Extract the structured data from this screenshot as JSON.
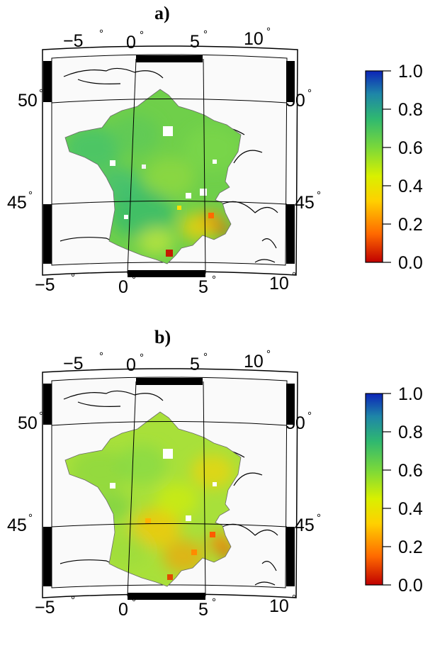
{
  "panels": [
    {
      "label": "a)",
      "lon_labels_top": [
        "−5",
        "0",
        "5",
        "10"
      ],
      "lon_labels_bottom": [
        "−5",
        "0",
        "5",
        "10"
      ],
      "lat_labels_left": [
        "50",
        "45"
      ],
      "lat_labels_right": [
        "50",
        "45"
      ],
      "degree_symbol": "°",
      "colorbar": {
        "ticks": [
          "1.0",
          "0.8",
          "0.6",
          "0.4",
          "0.2",
          "0.0"
        ],
        "min": 0.0,
        "max": 1.0
      },
      "field_mean": 0.7
    },
    {
      "label": "b)",
      "lon_labels_top": [
        "−5",
        "0",
        "5",
        "10"
      ],
      "lon_labels_bottom": [
        "−5",
        "0",
        "5",
        "10"
      ],
      "lat_labels_left": [
        "50",
        "45"
      ],
      "lat_labels_right": [
        "50",
        "45"
      ],
      "degree_symbol": "°",
      "colorbar": {
        "ticks": [
          "1.0",
          "0.8",
          "0.6",
          "0.4",
          "0.2",
          "0.0"
        ],
        "min": 0.0,
        "max": 1.0
      },
      "field_mean": 0.55
    }
  ],
  "colormap": {
    "stops": [
      "#c00000",
      "#ff6a00",
      "#ffd000",
      "#d9f000",
      "#7ad83a",
      "#2fb870",
      "#1e86a8",
      "#0c24b8"
    ]
  }
}
